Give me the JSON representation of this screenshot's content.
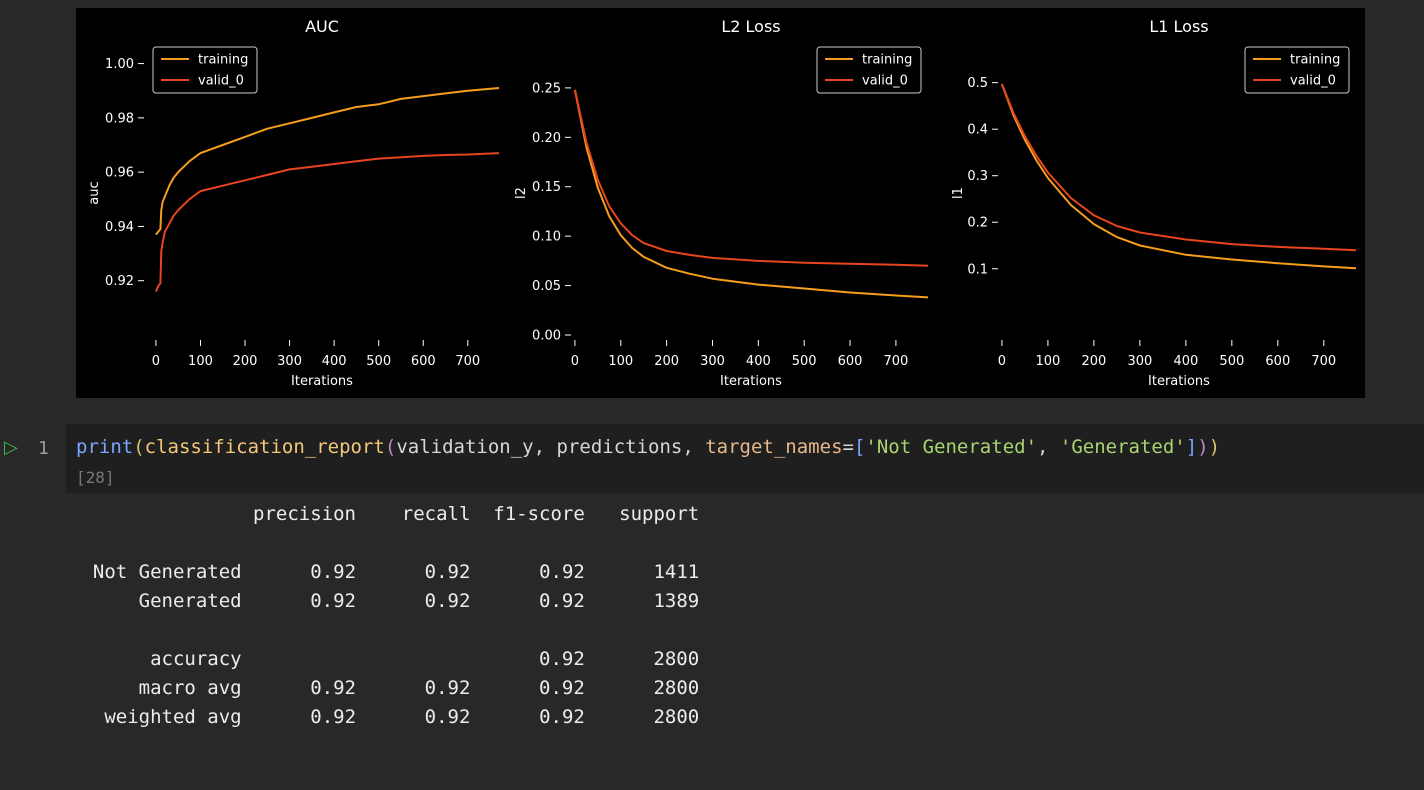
{
  "chart_data": [
    {
      "type": "line",
      "title": "AUC",
      "xlabel": "Iterations",
      "ylabel": "auc",
      "xlim": [
        -20,
        770
      ],
      "ylim": [
        0.9,
        1.005
      ],
      "xticks": [
        0,
        100,
        200,
        300,
        400,
        500,
        600,
        700
      ],
      "xtick_labels": [
        "0",
        "100",
        "200",
        "300",
        "400",
        "500",
        "600",
        "700"
      ],
      "yticks": [
        0.92,
        0.94,
        0.96,
        0.98,
        1.0
      ],
      "ytick_labels": [
        "0.92",
        "0.94",
        "0.96",
        "0.98",
        "1.00"
      ],
      "legend_position": "top-left",
      "grid": false,
      "series": [
        {
          "name": "training",
          "color": "#f59e1b",
          "x": [
            0,
            5,
            10,
            12,
            15,
            20,
            30,
            40,
            50,
            75,
            100,
            150,
            200,
            250,
            300,
            350,
            400,
            450,
            500,
            550,
            600,
            650,
            700,
            770
          ],
          "y": [
            0.937,
            0.938,
            0.939,
            0.946,
            0.949,
            0.951,
            0.955,
            0.958,
            0.96,
            0.964,
            0.967,
            0.97,
            0.973,
            0.976,
            0.978,
            0.98,
            0.982,
            0.984,
            0.985,
            0.987,
            0.988,
            0.989,
            0.99,
            0.991
          ]
        },
        {
          "name": "valid_0",
          "color": "#e8451e",
          "x": [
            0,
            5,
            10,
            12,
            15,
            20,
            30,
            40,
            50,
            75,
            100,
            150,
            200,
            250,
            300,
            350,
            400,
            450,
            500,
            550,
            600,
            650,
            700,
            770
          ],
          "y": [
            0.916,
            0.918,
            0.919,
            0.931,
            0.934,
            0.938,
            0.941,
            0.944,
            0.946,
            0.95,
            0.953,
            0.955,
            0.957,
            0.959,
            0.961,
            0.962,
            0.963,
            0.964,
            0.965,
            0.9655,
            0.966,
            0.9663,
            0.9665,
            0.967
          ]
        }
      ]
    },
    {
      "type": "line",
      "title": "L2 Loss",
      "xlabel": "Iterations",
      "ylabel": "l2",
      "xlim": [
        -2,
        770
      ],
      "ylim": [
        0.0,
        0.26
      ],
      "xticks": [
        0,
        100,
        200,
        300,
        400,
        500,
        600,
        700
      ],
      "xtick_labels": [
        "0",
        "100",
        "200",
        "300",
        "400",
        "500",
        "600",
        "700"
      ],
      "yticks": [
        0.0,
        0.05,
        0.1,
        0.15,
        0.2,
        0.25
      ],
      "ytick_labels": [
        "0.00",
        "0.05",
        "0.10",
        "0.15",
        "0.20",
        "0.25"
      ],
      "legend_position": "top-right",
      "grid": false,
      "series": [
        {
          "name": "training",
          "color": "#f59e1b",
          "x": [
            0,
            25,
            50,
            75,
            100,
            125,
            150,
            200,
            250,
            300,
            400,
            500,
            600,
            700,
            770
          ],
          "y": [
            0.248,
            0.19,
            0.149,
            0.12,
            0.101,
            0.088,
            0.079,
            0.068,
            0.062,
            0.057,
            0.051,
            0.047,
            0.043,
            0.04,
            0.038
          ]
        },
        {
          "name": "valid_0",
          "color": "#e8451e",
          "x": [
            0,
            25,
            50,
            75,
            100,
            125,
            150,
            200,
            250,
            300,
            400,
            500,
            600,
            700,
            770
          ],
          "y": [
            0.248,
            0.195,
            0.157,
            0.13,
            0.113,
            0.101,
            0.093,
            0.085,
            0.081,
            0.078,
            0.075,
            0.073,
            0.072,
            0.071,
            0.07
          ]
        }
      ]
    },
    {
      "type": "line",
      "title": "L1 Loss",
      "xlabel": "Iterations",
      "ylabel": "l1",
      "xlim": [
        -2,
        770
      ],
      "ylim": [
        0.02,
        0.51
      ],
      "xticks": [
        0,
        100,
        200,
        300,
        400,
        500,
        600,
        700
      ],
      "xtick_labels": [
        "0",
        "100",
        "200",
        "300",
        "400",
        "500",
        "600",
        "700"
      ],
      "yticks": [
        0.1,
        0.2,
        0.3,
        0.4,
        0.5
      ],
      "ytick_labels": [
        "0.1",
        "0.2",
        "0.3",
        "0.4",
        "0.5"
      ],
      "legend_position": "top-right",
      "grid": false,
      "series": [
        {
          "name": "training",
          "color": "#f59e1b",
          "x": [
            0,
            25,
            50,
            75,
            100,
            150,
            200,
            250,
            300,
            400,
            500,
            600,
            700,
            770
          ],
          "y": [
            0.497,
            0.43,
            0.377,
            0.333,
            0.295,
            0.237,
            0.196,
            0.168,
            0.15,
            0.13,
            0.12,
            0.112,
            0.105,
            0.101
          ]
        },
        {
          "name": "valid_0",
          "color": "#e8451e",
          "x": [
            0,
            25,
            50,
            75,
            100,
            150,
            200,
            250,
            300,
            400,
            500,
            600,
            700,
            770
          ],
          "y": [
            0.497,
            0.435,
            0.385,
            0.343,
            0.307,
            0.252,
            0.215,
            0.192,
            0.178,
            0.163,
            0.153,
            0.147,
            0.143,
            0.14
          ]
        }
      ]
    }
  ],
  "cell": {
    "line_number": "1",
    "execution_count": "[28]",
    "code_tokens": [
      {
        "t": "print",
        "c": "tok-fn1"
      },
      {
        "t": "(",
        "c": "tok-br1"
      },
      {
        "t": "classification_report",
        "c": "tok-fn2"
      },
      {
        "t": "(",
        "c": "tok-br2"
      },
      {
        "t": "validation_y",
        "c": "tok-var"
      },
      {
        "t": ", ",
        "c": "tok-p"
      },
      {
        "t": "predictions",
        "c": "tok-var"
      },
      {
        "t": ", ",
        "c": "tok-p"
      },
      {
        "t": "target_names",
        "c": "tok-kw"
      },
      {
        "t": "=",
        "c": "tok-p"
      },
      {
        "t": "[",
        "c": "tok-br3"
      },
      {
        "t": "'Not Generated'",
        "c": "tok-str"
      },
      {
        "t": ", ",
        "c": "tok-p"
      },
      {
        "t": "'Generated'",
        "c": "tok-str"
      },
      {
        "t": "]",
        "c": "tok-br3"
      },
      {
        "t": ")",
        "c": "tok-br2"
      },
      {
        "t": ")",
        "c": "tok-br1"
      }
    ]
  },
  "report": {
    "header": [
      "precision",
      "recall",
      "f1-score",
      "support"
    ],
    "rows": [
      {
        "label": "Not Generated",
        "precision": "0.92",
        "recall": "0.92",
        "f1": "0.92",
        "support": "1411"
      },
      {
        "label": "Generated",
        "precision": "0.92",
        "recall": "0.92",
        "f1": "0.92",
        "support": "1389"
      },
      {
        "label": "",
        "precision": "",
        "recall": "",
        "f1": "",
        "support": ""
      },
      {
        "label": "accuracy",
        "precision": "",
        "recall": "",
        "f1": "0.92",
        "support": "2800"
      },
      {
        "label": "macro avg",
        "precision": "0.92",
        "recall": "0.92",
        "f1": "0.92",
        "support": "2800"
      },
      {
        "label": "weighted avg",
        "precision": "0.92",
        "recall": "0.92",
        "f1": "0.92",
        "support": "2800"
      }
    ]
  }
}
